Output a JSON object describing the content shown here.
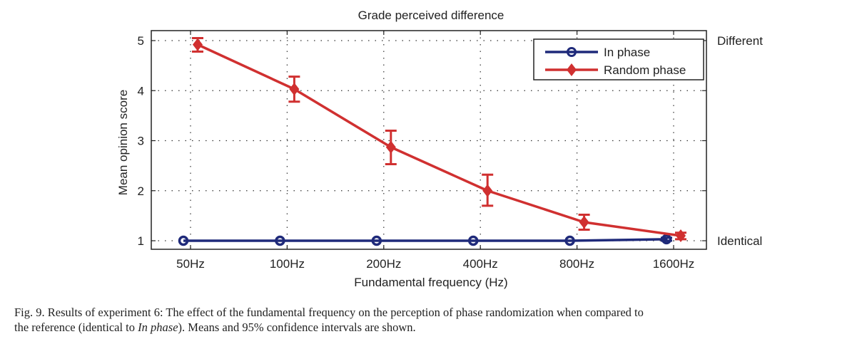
{
  "chart_data": {
    "type": "line",
    "title": "Grade perceived difference",
    "xlabel": "Fundamental frequency (Hz)",
    "ylabel": "Mean opinion score",
    "categories": [
      "50Hz",
      "100Hz",
      "200Hz",
      "400Hz",
      "800Hz",
      "1600Hz"
    ],
    "yticks": [
      "1",
      "2",
      "3",
      "4",
      "5"
    ],
    "ylim": [
      0.83,
      5.2
    ],
    "grid": true,
    "right_axis_labels": [
      {
        "value": 5,
        "label": "Different"
      },
      {
        "value": 1,
        "label": "Identical"
      }
    ],
    "legend": {
      "position": "top-right",
      "entries": [
        "In phase",
        "Random phase"
      ]
    },
    "series": [
      {
        "name": "In phase",
        "color": "#1f2a7a",
        "marker": "circle",
        "values": [
          1.0,
          1.0,
          1.0,
          1.0,
          1.0,
          1.03
        ],
        "ci_low": [
          1.0,
          1.0,
          1.0,
          1.0,
          1.0,
          1.0
        ],
        "ci_high": [
          1.0,
          1.0,
          1.0,
          1.0,
          1.0,
          1.06
        ]
      },
      {
        "name": "Random phase",
        "color": "#d03030",
        "marker": "diamond",
        "values": [
          4.92,
          4.03,
          2.87,
          2.0,
          1.37,
          1.1
        ],
        "ci_low": [
          4.78,
          3.78,
          2.53,
          1.7,
          1.22,
          1.03
        ],
        "ci_high": [
          5.05,
          4.28,
          3.2,
          2.32,
          1.52,
          1.16
        ]
      }
    ]
  },
  "caption": {
    "prefix": "Fig. 9.  Results of experiment 6: The effect of the fundamental frequency on the perception of phase randomization when compared to",
    "line2_start": "the reference (identical to ",
    "line2_italic": "In phase",
    "line2_end": "). Means and 95% confidence intervals are shown."
  }
}
